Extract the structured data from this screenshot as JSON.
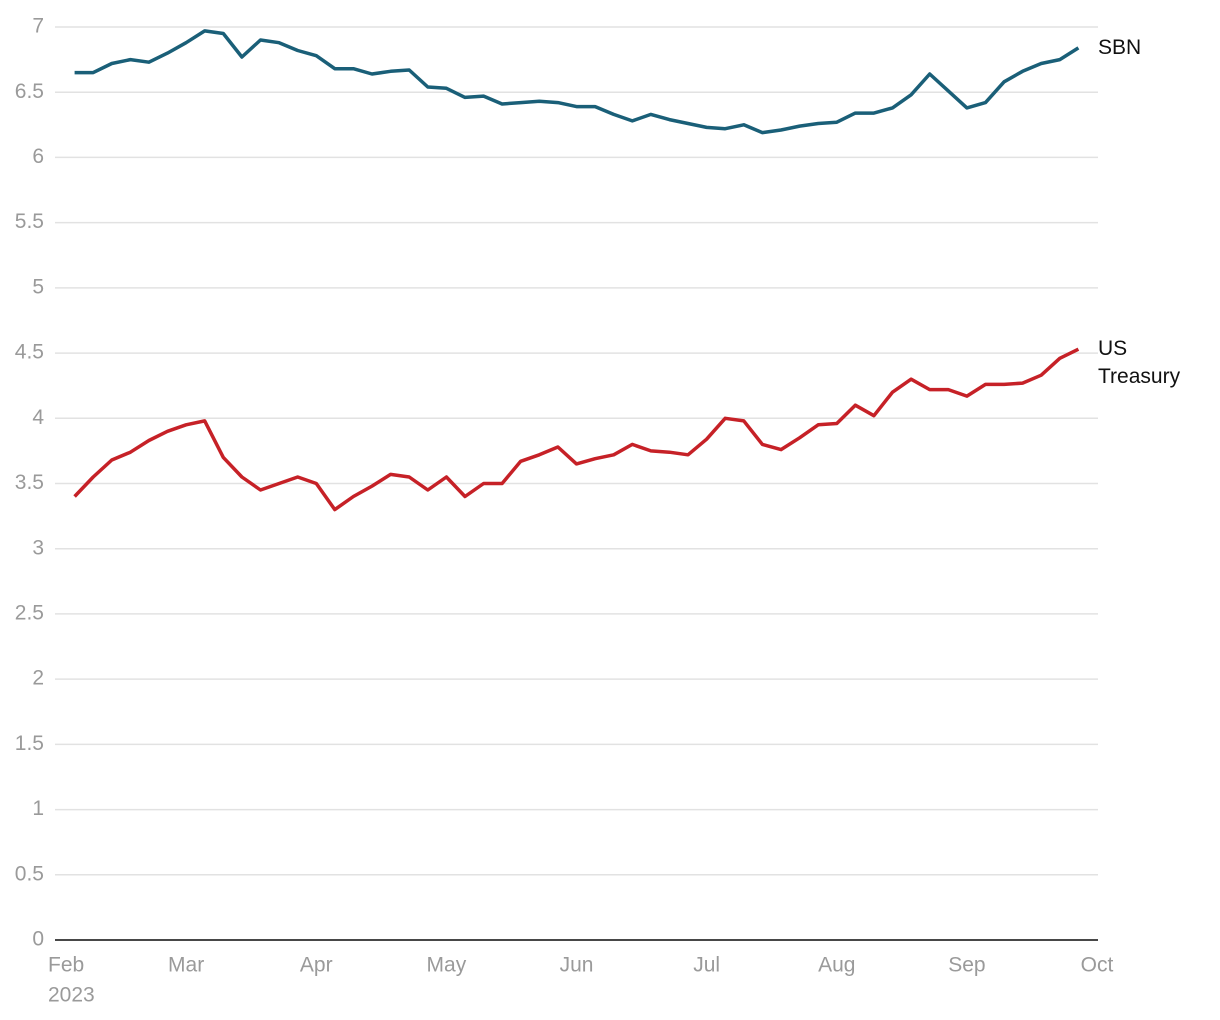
{
  "chart_data": {
    "type": "line",
    "categories": [
      "Feb",
      null,
      null,
      null,
      null,
      null,
      null,
      "Mar",
      null,
      null,
      null,
      null,
      null,
      null,
      "Apr",
      null,
      null,
      null,
      null,
      null,
      null,
      "May",
      null,
      null,
      null,
      null,
      null,
      null,
      "Jun",
      null,
      null,
      null,
      null,
      null,
      null,
      "Jul",
      null,
      null,
      null,
      null,
      null,
      null,
      "Aug",
      null,
      null,
      null,
      null,
      null,
      null,
      "Sep",
      null,
      null,
      null,
      null,
      null,
      null,
      "Oct"
    ],
    "year_label": "2023",
    "series": [
      {
        "name": "SBN",
        "color": "#1a5f78",
        "values": [
          null,
          6.65,
          6.65,
          6.72,
          6.75,
          6.73,
          6.8,
          6.88,
          6.97,
          6.95,
          6.77,
          6.9,
          6.88,
          6.82,
          6.78,
          6.68,
          6.68,
          6.64,
          6.66,
          6.67,
          6.54,
          6.53,
          6.46,
          6.47,
          6.41,
          6.42,
          6.43,
          6.42,
          6.39,
          6.39,
          6.33,
          6.28,
          6.33,
          6.29,
          6.26,
          6.23,
          6.22,
          6.25,
          6.19,
          6.21,
          6.24,
          6.26,
          6.27,
          6.34,
          6.34,
          6.38,
          6.48,
          6.64,
          6.51,
          6.38,
          6.42,
          6.58,
          6.66,
          6.72,
          6.75,
          6.84,
          null
        ]
      },
      {
        "name": "US Treasury",
        "color": "#c62127",
        "values": [
          null,
          3.4,
          3.55,
          3.68,
          3.74,
          3.83,
          3.9,
          3.95,
          3.98,
          3.7,
          3.55,
          3.45,
          3.5,
          3.55,
          3.5,
          3.3,
          3.4,
          3.48,
          3.57,
          3.55,
          3.45,
          3.55,
          3.4,
          3.5,
          3.5,
          3.67,
          3.72,
          3.78,
          3.65,
          3.69,
          3.72,
          3.8,
          3.75,
          3.74,
          3.72,
          3.84,
          4.0,
          3.98,
          3.8,
          3.76,
          3.85,
          3.95,
          3.96,
          4.1,
          4.02,
          4.2,
          4.3,
          4.22,
          4.22,
          4.17,
          4.26,
          4.26,
          4.27,
          4.33,
          4.46,
          4.53,
          null
        ]
      }
    ],
    "ylim": [
      0,
      7
    ],
    "yticks": [
      0,
      0.5,
      1,
      1.5,
      2,
      2.5,
      3,
      3.5,
      4,
      4.5,
      5,
      5.5,
      6,
      6.5,
      7
    ],
    "grid": true
  }
}
